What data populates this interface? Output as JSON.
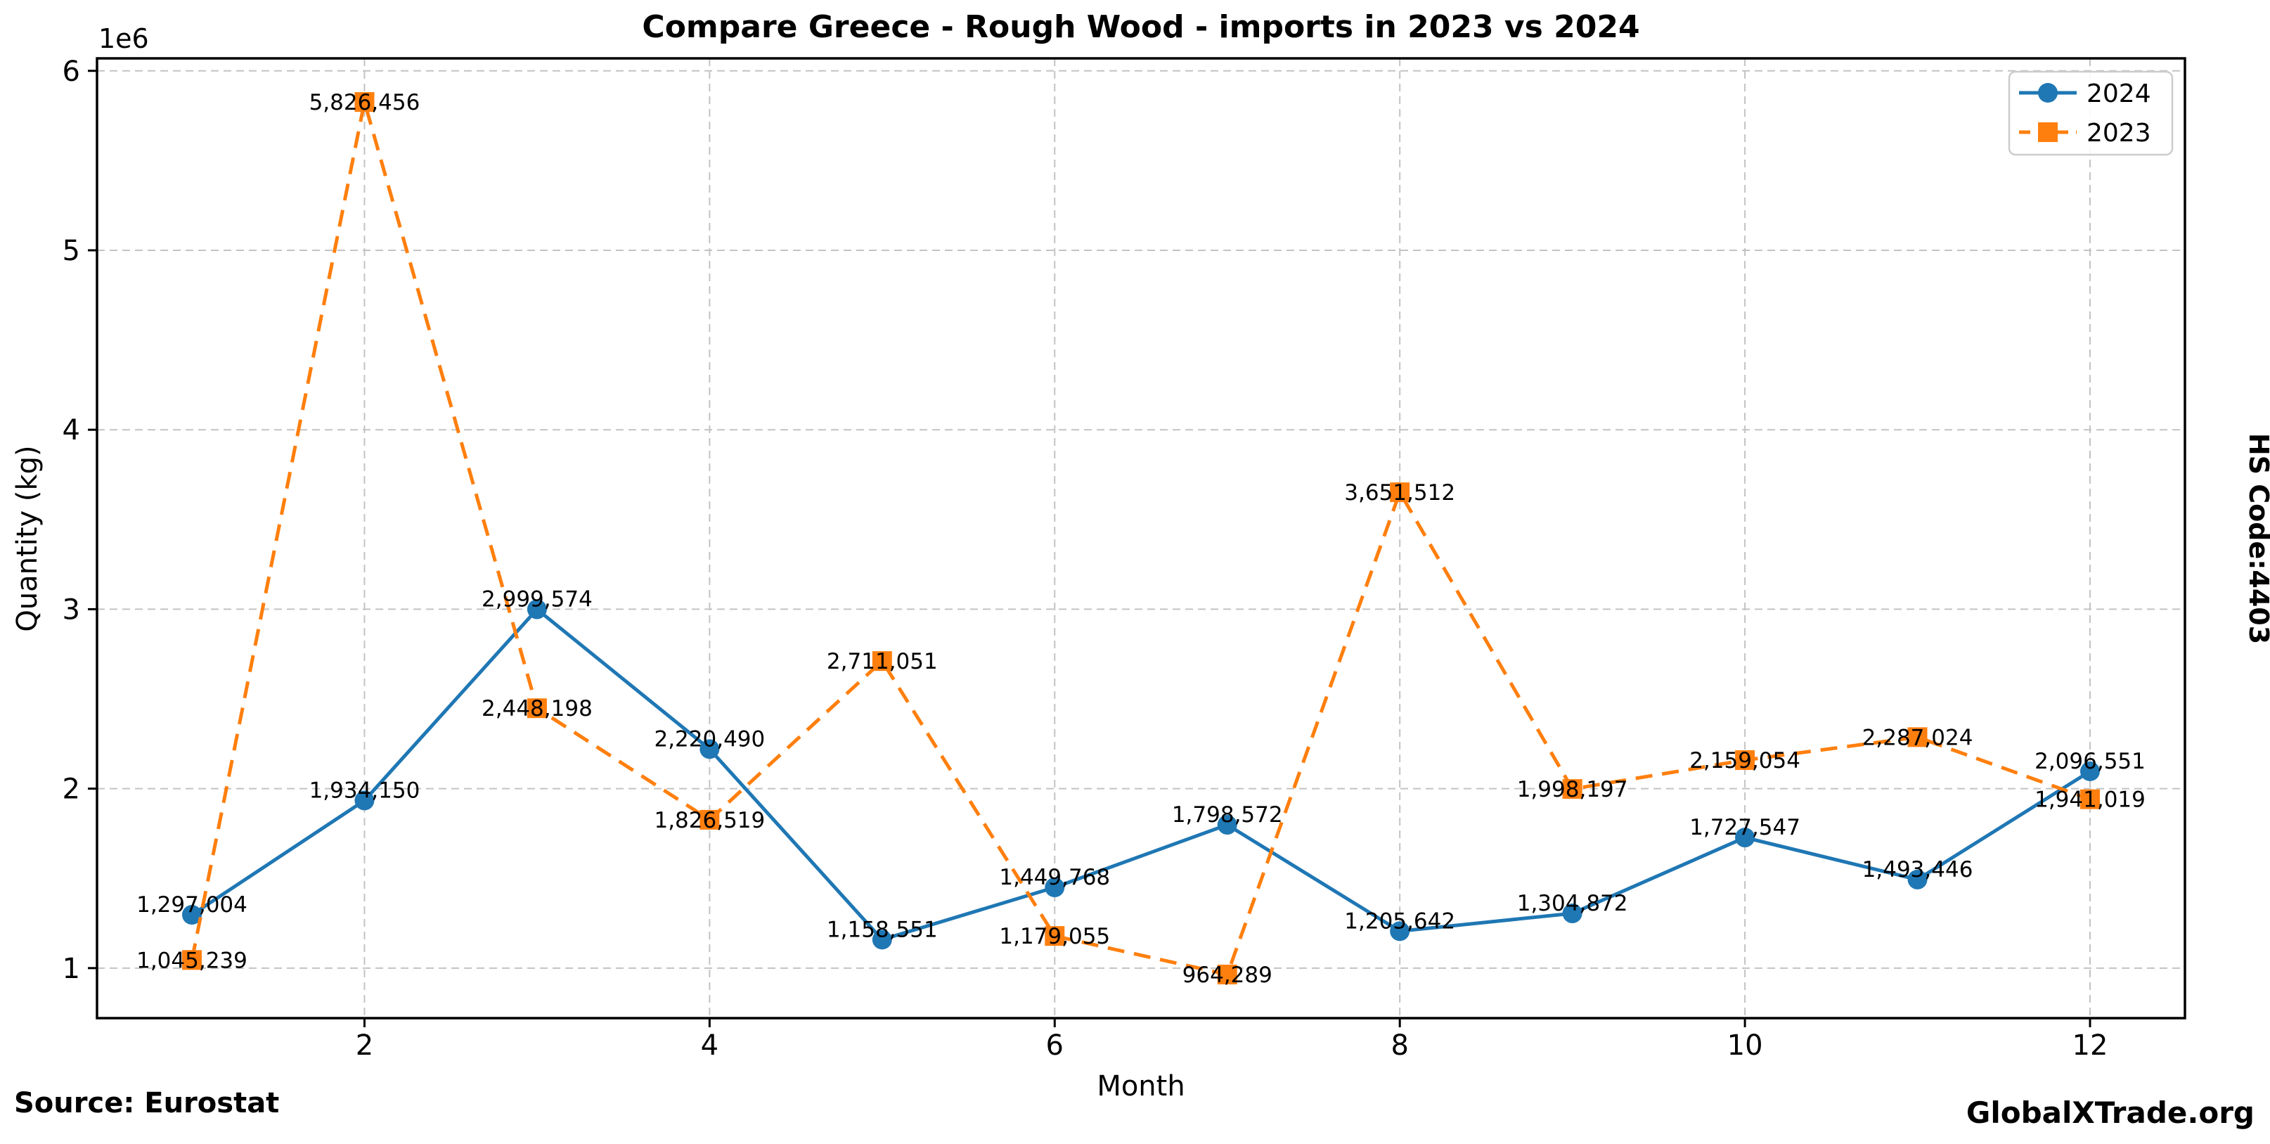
{
  "title": "Compare Greece - Rough Wood - imports in 2023 vs 2024",
  "side_label": "HS Code:4403",
  "footer": {
    "source": "Source: Eurostat",
    "website": "GlobalXTrade.org"
  },
  "legend": {
    "entries": [
      {
        "label": "2024",
        "color": "#1f77b4",
        "marker": "circle",
        "linestyle": "solid"
      },
      {
        "label": "2023",
        "color": "#ff7f0e",
        "marker": "square",
        "linestyle": "dashed"
      }
    ]
  },
  "chart_data": {
    "type": "line",
    "title": "Compare Greece - Rough Wood - imports in 2023 vs 2024",
    "xlabel": "Month",
    "ylabel": "Quantity (kg)",
    "y_offset_label": "1e6",
    "x": [
      1,
      2,
      3,
      4,
      5,
      6,
      7,
      8,
      9,
      10,
      11,
      12
    ],
    "xticks": [
      2,
      4,
      6,
      8,
      10,
      12
    ],
    "yticks": [
      1000000,
      2000000,
      3000000,
      4000000,
      5000000,
      6000000
    ],
    "ytick_labels": [
      "1",
      "2",
      "3",
      "4",
      "5",
      "6"
    ],
    "grid": true,
    "legend_position": "upper right",
    "x_margin": 0.05,
    "y_margin": 0.05,
    "series": [
      {
        "name": "2024",
        "color": "#1f77b4",
        "marker": "circle",
        "linestyle": "solid",
        "values": [
          1297004,
          1934150,
          2999574,
          2220490,
          1158551,
          1449768,
          1798572,
          1205642,
          1304872,
          1727547,
          1493446,
          2096551
        ]
      },
      {
        "name": "2023",
        "color": "#ff7f0e",
        "marker": "square",
        "linestyle": "dashed",
        "values": [
          1045239,
          5826456,
          2448198,
          1826519,
          2711051,
          1179055,
          964289,
          3651512,
          1998197,
          2159054,
          2287024,
          1941019
        ]
      }
    ]
  },
  "style": {
    "grid_color": "#c3c3c3",
    "spine_color": "#000000",
    "background": "#ffffff",
    "label_color": "#000000"
  }
}
